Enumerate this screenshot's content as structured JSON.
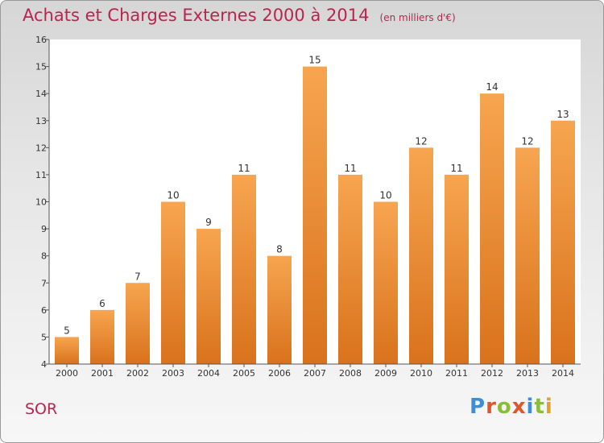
{
  "title": "Achats et Charges Externes 2000 à 2014",
  "unit_note": "(en milliers d'€)",
  "commune": "SOR",
  "logo": {
    "letters": [
      "P",
      "r",
      "o",
      "x",
      "i",
      "t",
      "i"
    ],
    "colors": [
      "#3b8fd8",
      "#e0562a",
      "#8cbd3a",
      "#e0562a",
      "#3b8fd8",
      "#8cbd3a",
      "#e0a22a"
    ]
  },
  "chart_data": {
    "type": "bar",
    "title": "Achats et Charges Externes 2000 à 2014",
    "subtitle": "(en milliers d'€)",
    "categories": [
      "2000",
      "2001",
      "2002",
      "2003",
      "2004",
      "2005",
      "2006",
      "2007",
      "2008",
      "2009",
      "2010",
      "2011",
      "2012",
      "2013",
      "2014"
    ],
    "values": [
      5,
      6,
      7,
      10,
      9,
      11,
      8,
      15,
      11,
      10,
      12,
      11,
      14,
      12,
      13
    ],
    "data_labels": [
      "5",
      "6",
      "7",
      "10",
      "9",
      "11",
      "8",
      "15",
      "11",
      "10",
      "12",
      "11",
      "14",
      "12",
      "13"
    ],
    "y_ticks": [
      "4",
      "5",
      "6",
      "7",
      "8",
      "9",
      "10",
      "11",
      "12",
      "13",
      "14",
      "15",
      "16"
    ],
    "ylim": [
      4,
      16
    ],
    "xlabel": "",
    "ylabel": "",
    "grid": false,
    "bar_color_top": "#f7a550",
    "bar_color_bottom": "#d9721c"
  }
}
